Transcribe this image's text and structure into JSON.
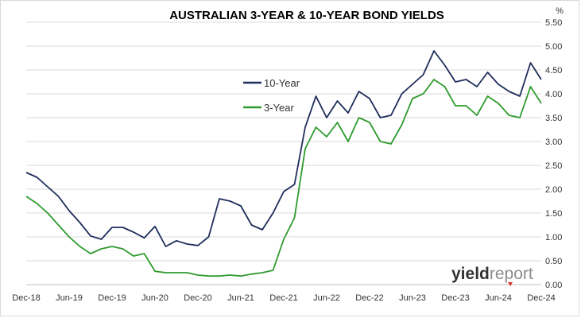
{
  "chart_data": {
    "type": "line",
    "title": "AUSTRALIAN 3-YEAR & 10-YEAR BOND YIELDS",
    "y_unit": "%",
    "ylim": [
      0,
      5.5
    ],
    "y_ticks": [
      "0.00",
      "0.50",
      "1.00",
      "1.50",
      "2.00",
      "2.50",
      "3.00",
      "3.50",
      "4.00",
      "4.50",
      "5.00",
      "5.50"
    ],
    "x_ticks": [
      "Dec-18",
      "Jun-19",
      "Dec-19",
      "Jun-20",
      "Dec-20",
      "Jun-21",
      "Dec-21",
      "Jun-22",
      "Dec-22",
      "Jun-23",
      "Dec-23",
      "Jun-24",
      "Dec-24"
    ],
    "grid": true,
    "legend_position": "top-center",
    "colors": {
      "ten_year": "#1f2d5c",
      "three_year": "#2e9b2e",
      "grid": "#d9d9d9",
      "logo_marker": "#e0332b"
    },
    "series": [
      {
        "name": "10-Year",
        "x": [
          0,
          0.25,
          0.5,
          0.75,
          1,
          1.25,
          1.5,
          1.75,
          2,
          2.25,
          2.5,
          2.75,
          3,
          3.25,
          3.5,
          3.75,
          4,
          4.25,
          4.5,
          4.75,
          5,
          5.25,
          5.5,
          5.75,
          6,
          6.25,
          6.5,
          6.75,
          7,
          7.25,
          7.5,
          7.75,
          8,
          8.25,
          8.5,
          8.75,
          9,
          9.25,
          9.5,
          9.75,
          10,
          10.25,
          10.5,
          10.75,
          11,
          11.25,
          11.5,
          11.75,
          12
        ],
        "values": [
          2.35,
          2.25,
          2.05,
          1.85,
          1.55,
          1.3,
          1.02,
          0.95,
          1.2,
          1.2,
          1.1,
          0.98,
          1.22,
          0.8,
          0.92,
          0.85,
          0.82,
          1.0,
          1.8,
          1.75,
          1.65,
          1.25,
          1.15,
          1.5,
          1.95,
          2.1,
          3.3,
          3.95,
          3.5,
          3.85,
          3.6,
          4.05,
          3.9,
          3.5,
          3.55,
          4.0,
          4.2,
          4.4,
          4.9,
          4.6,
          4.25,
          4.3,
          4.15,
          4.45,
          4.2,
          4.05,
          3.95,
          4.65,
          4.3
        ]
      },
      {
        "name": "3-Year",
        "x": [
          0,
          0.25,
          0.5,
          0.75,
          1,
          1.25,
          1.5,
          1.75,
          2,
          2.25,
          2.5,
          2.75,
          3,
          3.25,
          3.5,
          3.75,
          4,
          4.25,
          4.5,
          4.75,
          5,
          5.25,
          5.5,
          5.75,
          6,
          6.25,
          6.5,
          6.75,
          7,
          7.25,
          7.5,
          7.75,
          8,
          8.25,
          8.5,
          8.75,
          9,
          9.25,
          9.5,
          9.75,
          10,
          10.25,
          10.5,
          10.75,
          11,
          11.25,
          11.5,
          11.75,
          12
        ],
        "values": [
          1.85,
          1.7,
          1.5,
          1.25,
          1.0,
          0.8,
          0.65,
          0.75,
          0.8,
          0.75,
          0.6,
          0.65,
          0.28,
          0.25,
          0.25,
          0.25,
          0.2,
          0.18,
          0.18,
          0.2,
          0.18,
          0.22,
          0.25,
          0.3,
          0.95,
          1.4,
          2.85,
          3.3,
          3.1,
          3.4,
          3.0,
          3.5,
          3.4,
          3.0,
          2.95,
          3.35,
          3.9,
          4.0,
          4.3,
          4.15,
          3.75,
          3.75,
          3.55,
          3.95,
          3.8,
          3.55,
          3.5,
          4.15,
          3.8
        ]
      }
    ]
  },
  "logo": {
    "part1": "yield",
    "part2": "report"
  }
}
